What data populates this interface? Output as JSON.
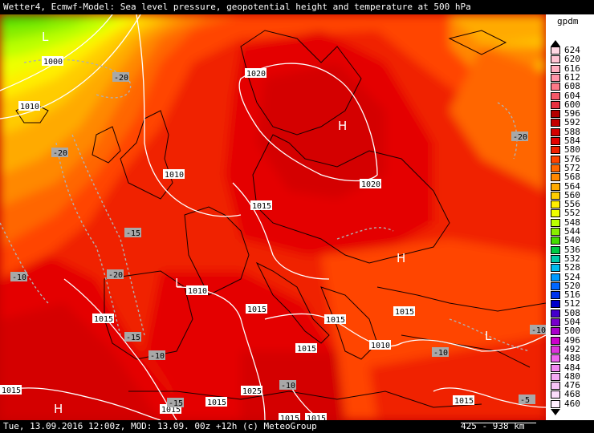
{
  "header": {
    "title": "Wetter4, Ecmwf-Model: Sea level pressure, geopotential height and temperature at 500 hPa"
  },
  "footer": {
    "run_info": "Tue, 13.09.2016 12:00z, MOD: 13.09. 00z +12h (c) MeteoGroup",
    "scale": "425 - 938 km"
  },
  "legend": {
    "unit": "gpdm",
    "levels": [
      {
        "value": "624",
        "color": "#ffd8e4"
      },
      {
        "value": "620",
        "color": "#ffc4d4"
      },
      {
        "value": "616",
        "color": "#ffaec0"
      },
      {
        "value": "612",
        "color": "#ff94a8"
      },
      {
        "value": "608",
        "color": "#ff7888"
      },
      {
        "value": "604",
        "color": "#f45868"
      },
      {
        "value": "600",
        "color": "#e83040"
      },
      {
        "value": "596",
        "color": "#b40000"
      },
      {
        "value": "592",
        "color": "#c40000"
      },
      {
        "value": "588",
        "color": "#d40000"
      },
      {
        "value": "584",
        "color": "#e40000"
      },
      {
        "value": "580",
        "color": "#f02000"
      },
      {
        "value": "576",
        "color": "#ff4400"
      },
      {
        "value": "572",
        "color": "#ff6600"
      },
      {
        "value": "568",
        "color": "#ff8800"
      },
      {
        "value": "564",
        "color": "#ffaa00"
      },
      {
        "value": "560",
        "color": "#ffcc00"
      },
      {
        "value": "556",
        "color": "#ffee00"
      },
      {
        "value": "552",
        "color": "#eeff00"
      },
      {
        "value": "548",
        "color": "#bbff00"
      },
      {
        "value": "544",
        "color": "#88ee00"
      },
      {
        "value": "540",
        "color": "#44dd00"
      },
      {
        "value": "536",
        "color": "#00cc44"
      },
      {
        "value": "532",
        "color": "#00ccaa"
      },
      {
        "value": "528",
        "color": "#00bbee"
      },
      {
        "value": "524",
        "color": "#0099ff"
      },
      {
        "value": "520",
        "color": "#0066ff"
      },
      {
        "value": "516",
        "color": "#0033ee"
      },
      {
        "value": "512",
        "color": "#0000cc"
      },
      {
        "value": "508",
        "color": "#4400cc"
      },
      {
        "value": "504",
        "color": "#7700cc"
      },
      {
        "value": "500",
        "color": "#aa00cc"
      },
      {
        "value": "496",
        "color": "#cc00cc"
      },
      {
        "value": "492",
        "color": "#dd33dd"
      },
      {
        "value": "488",
        "color": "#ee66ee"
      },
      {
        "value": "484",
        "color": "#f088f0"
      },
      {
        "value": "480",
        "color": "#f4aaf4"
      },
      {
        "value": "476",
        "color": "#f8c4f8"
      },
      {
        "value": "468",
        "color": "#fbdcfb"
      },
      {
        "value": "460",
        "color": "#ffeeff"
      }
    ]
  },
  "map": {
    "isobars": [
      {
        "label": "1000"
      },
      {
        "label": "1010"
      },
      {
        "label": "1010"
      },
      {
        "label": "1020"
      },
      {
        "label": "1020"
      },
      {
        "label": "1015"
      },
      {
        "label": "1010"
      },
      {
        "label": "1015"
      },
      {
        "label": "1015"
      },
      {
        "label": "1015"
      },
      {
        "label": "1015"
      },
      {
        "label": "1015"
      },
      {
        "label": "1015"
      },
      {
        "label": "1015"
      },
      {
        "label": "1010"
      },
      {
        "label": "1025"
      },
      {
        "label": "1015"
      },
      {
        "label": "1015"
      },
      {
        "label": "1015"
      },
      {
        "label": "1015"
      }
    ],
    "isotherms": [
      {
        "label": "-20"
      },
      {
        "label": "-20"
      },
      {
        "label": "-15"
      },
      {
        "label": "-20"
      },
      {
        "label": "-10"
      },
      {
        "label": "-15"
      },
      {
        "label": "-10"
      },
      {
        "label": "-10"
      },
      {
        "label": "-10"
      },
      {
        "label": "-5"
      },
      {
        "label": "-10"
      },
      {
        "label": "-20"
      },
      {
        "label": "-15"
      }
    ],
    "pressure_centers": [
      {
        "type": "L"
      },
      {
        "type": "H"
      },
      {
        "type": "H"
      },
      {
        "type": "L"
      },
      {
        "type": "H"
      },
      {
        "type": "L"
      }
    ]
  }
}
